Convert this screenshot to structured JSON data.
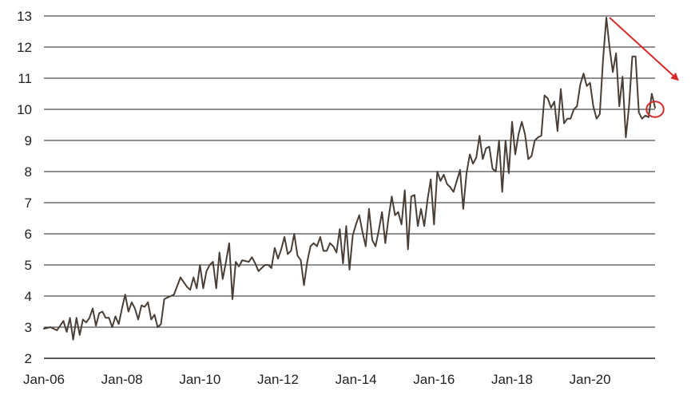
{
  "chart_data": {
    "type": "line",
    "title": "",
    "xlabel": "",
    "ylabel": "",
    "ylim": [
      2,
      13
    ],
    "y_ticks": [
      2,
      3,
      4,
      5,
      6,
      7,
      8,
      9,
      10,
      11,
      12,
      13
    ],
    "x_ticks": [
      "Jan-06",
      "Jan-08",
      "Jan-10",
      "Jan-12",
      "Jan-14",
      "Jan-16",
      "Jan-18",
      "Jan-20"
    ],
    "xlim": [
      "2006-01",
      "2021-09"
    ],
    "grid": true,
    "colors": {
      "series": "#4a3f36",
      "annotation": "#d62a2a",
      "grid": "#222222"
    },
    "series": [
      {
        "x": [
          "2006-01",
          "2006-03",
          "2006-05",
          "2006-07",
          "2006-08",
          "2006-09",
          "2006-10",
          "2006-11",
          "2006-12",
          "2007-01",
          "2007-02",
          "2007-03",
          "2007-04",
          "2007-05",
          "2007-06",
          "2007-07",
          "2007-08",
          "2007-09",
          "2007-10",
          "2007-11",
          "2007-12",
          "2008-01",
          "2008-02",
          "2008-03",
          "2008-04",
          "2008-05",
          "2008-06",
          "2008-07",
          "2008-08",
          "2008-09",
          "2008-10",
          "2008-11",
          "2008-12",
          "2009-01",
          "2009-02",
          "2009-03",
          "2009-04",
          "2009-05",
          "2009-07",
          "2009-09",
          "2009-10",
          "2009-11",
          "2009-12",
          "2010-01",
          "2010-02",
          "2010-03",
          "2010-04",
          "2010-05",
          "2010-06",
          "2010-07",
          "2010-08",
          "2010-09",
          "2010-10",
          "2010-11",
          "2010-12",
          "2011-01",
          "2011-02",
          "2011-04",
          "2011-05",
          "2011-06",
          "2011-07",
          "2011-08",
          "2011-09",
          "2011-10",
          "2011-11",
          "2011-12",
          "2012-01",
          "2012-02",
          "2012-03",
          "2012-04",
          "2012-05",
          "2012-06",
          "2012-07",
          "2012-08",
          "2012-09",
          "2012-10",
          "2012-11",
          "2012-12",
          "2013-01",
          "2013-02",
          "2013-03",
          "2013-04",
          "2013-05",
          "2013-06",
          "2013-07",
          "2013-08",
          "2013-09",
          "2013-10",
          "2013-11",
          "2013-12",
          "2014-01",
          "2014-02",
          "2014-03",
          "2014-04",
          "2014-05",
          "2014-06",
          "2014-07",
          "2014-08",
          "2014-09",
          "2014-10",
          "2014-11",
          "2014-12",
          "2015-01",
          "2015-02",
          "2015-03",
          "2015-04",
          "2015-05",
          "2015-06",
          "2015-07",
          "2015-08",
          "2015-09",
          "2015-10",
          "2015-11",
          "2015-12",
          "2016-01",
          "2016-02",
          "2016-03",
          "2016-04",
          "2016-05",
          "2016-06",
          "2016-07",
          "2016-08",
          "2016-09",
          "2016-10",
          "2016-11",
          "2016-12",
          "2017-01",
          "2017-02",
          "2017-03",
          "2017-04",
          "2017-05",
          "2017-06",
          "2017-07",
          "2017-08",
          "2017-09",
          "2017-10",
          "2017-11",
          "2017-12",
          "2018-01",
          "2018-02",
          "2018-03",
          "2018-04",
          "2018-05",
          "2018-06",
          "2018-07",
          "2018-08",
          "2018-09",
          "2018-10",
          "2018-11",
          "2018-12",
          "2019-01",
          "2019-02",
          "2019-03",
          "2019-04",
          "2019-05",
          "2019-06",
          "2019-07",
          "2019-08",
          "2019-09",
          "2019-10",
          "2019-11",
          "2019-12",
          "2020-01",
          "2020-02",
          "2020-03",
          "2020-04",
          "2020-05",
          "2020-06",
          "2020-07",
          "2020-08",
          "2020-09",
          "2020-10",
          "2020-11",
          "2020-12",
          "2021-01",
          "2021-02",
          "2021-03",
          "2021-04",
          "2021-05",
          "2021-06",
          "2021-07",
          "2021-08",
          "2021-09"
        ],
        "values": [
          2.95,
          3.0,
          2.9,
          3.2,
          2.85,
          3.3,
          2.6,
          3.3,
          2.75,
          3.25,
          3.15,
          3.3,
          3.6,
          3.05,
          3.45,
          3.5,
          3.3,
          3.3,
          3.0,
          3.35,
          3.1,
          3.6,
          4.05,
          3.5,
          3.8,
          3.6,
          3.25,
          3.7,
          3.65,
          3.8,
          3.25,
          3.4,
          3.0,
          3.1,
          3.9,
          3.95,
          4.0,
          4.05,
          4.6,
          4.3,
          4.2,
          4.6,
          4.25,
          5.0,
          4.25,
          4.8,
          5.0,
          5.1,
          4.25,
          5.4,
          4.55,
          5.1,
          5.7,
          3.9,
          5.1,
          4.95,
          5.15,
          5.1,
          5.25,
          5.05,
          4.8,
          4.9,
          5.0,
          5.0,
          4.9,
          5.55,
          5.2,
          5.5,
          5.9,
          5.35,
          5.45,
          6.0,
          5.3,
          5.15,
          4.35,
          5.1,
          5.6,
          5.7,
          5.6,
          5.9,
          5.45,
          5.45,
          5.7,
          5.6,
          5.4,
          6.15,
          5.05,
          6.25,
          4.85,
          5.95,
          6.3,
          6.6,
          6.05,
          5.6,
          6.8,
          5.8,
          5.6,
          6.1,
          6.7,
          5.7,
          6.5,
          7.2,
          6.6,
          6.7,
          6.3,
          7.4,
          5.5,
          7.2,
          7.25,
          6.25,
          6.8,
          6.25,
          7.1,
          7.75,
          6.3,
          8.0,
          7.7,
          7.9,
          7.6,
          7.5,
          7.35,
          7.7,
          8.05,
          6.8,
          7.95,
          8.55,
          8.25,
          8.45,
          9.15,
          8.4,
          8.75,
          8.8,
          8.1,
          8.0,
          9.0,
          7.35,
          9.0,
          7.95,
          9.6,
          8.55,
          9.2,
          9.6,
          9.2,
          8.4,
          8.5,
          9.0,
          9.1,
          9.15,
          10.45,
          10.35,
          10.05,
          10.25,
          9.3,
          10.65,
          9.55,
          9.7,
          9.7,
          10.0,
          10.1,
          10.8,
          11.15,
          10.75,
          10.85,
          10.1,
          9.7,
          9.85,
          11.6,
          12.95,
          12.0,
          11.2,
          11.8,
          10.1,
          11.05,
          9.1,
          10.1,
          11.7,
          11.7,
          9.9,
          9.7,
          9.8,
          9.75,
          10.5,
          10.05
        ]
      }
    ],
    "annotations": [
      {
        "type": "arrow",
        "from": [
          "2020-07",
          12.95
        ],
        "to": [
          "2022-04",
          10.95
        ]
      },
      {
        "type": "circle",
        "center": [
          "2021-09",
          10.0
        ],
        "radius_y": 0.25
      }
    ]
  }
}
